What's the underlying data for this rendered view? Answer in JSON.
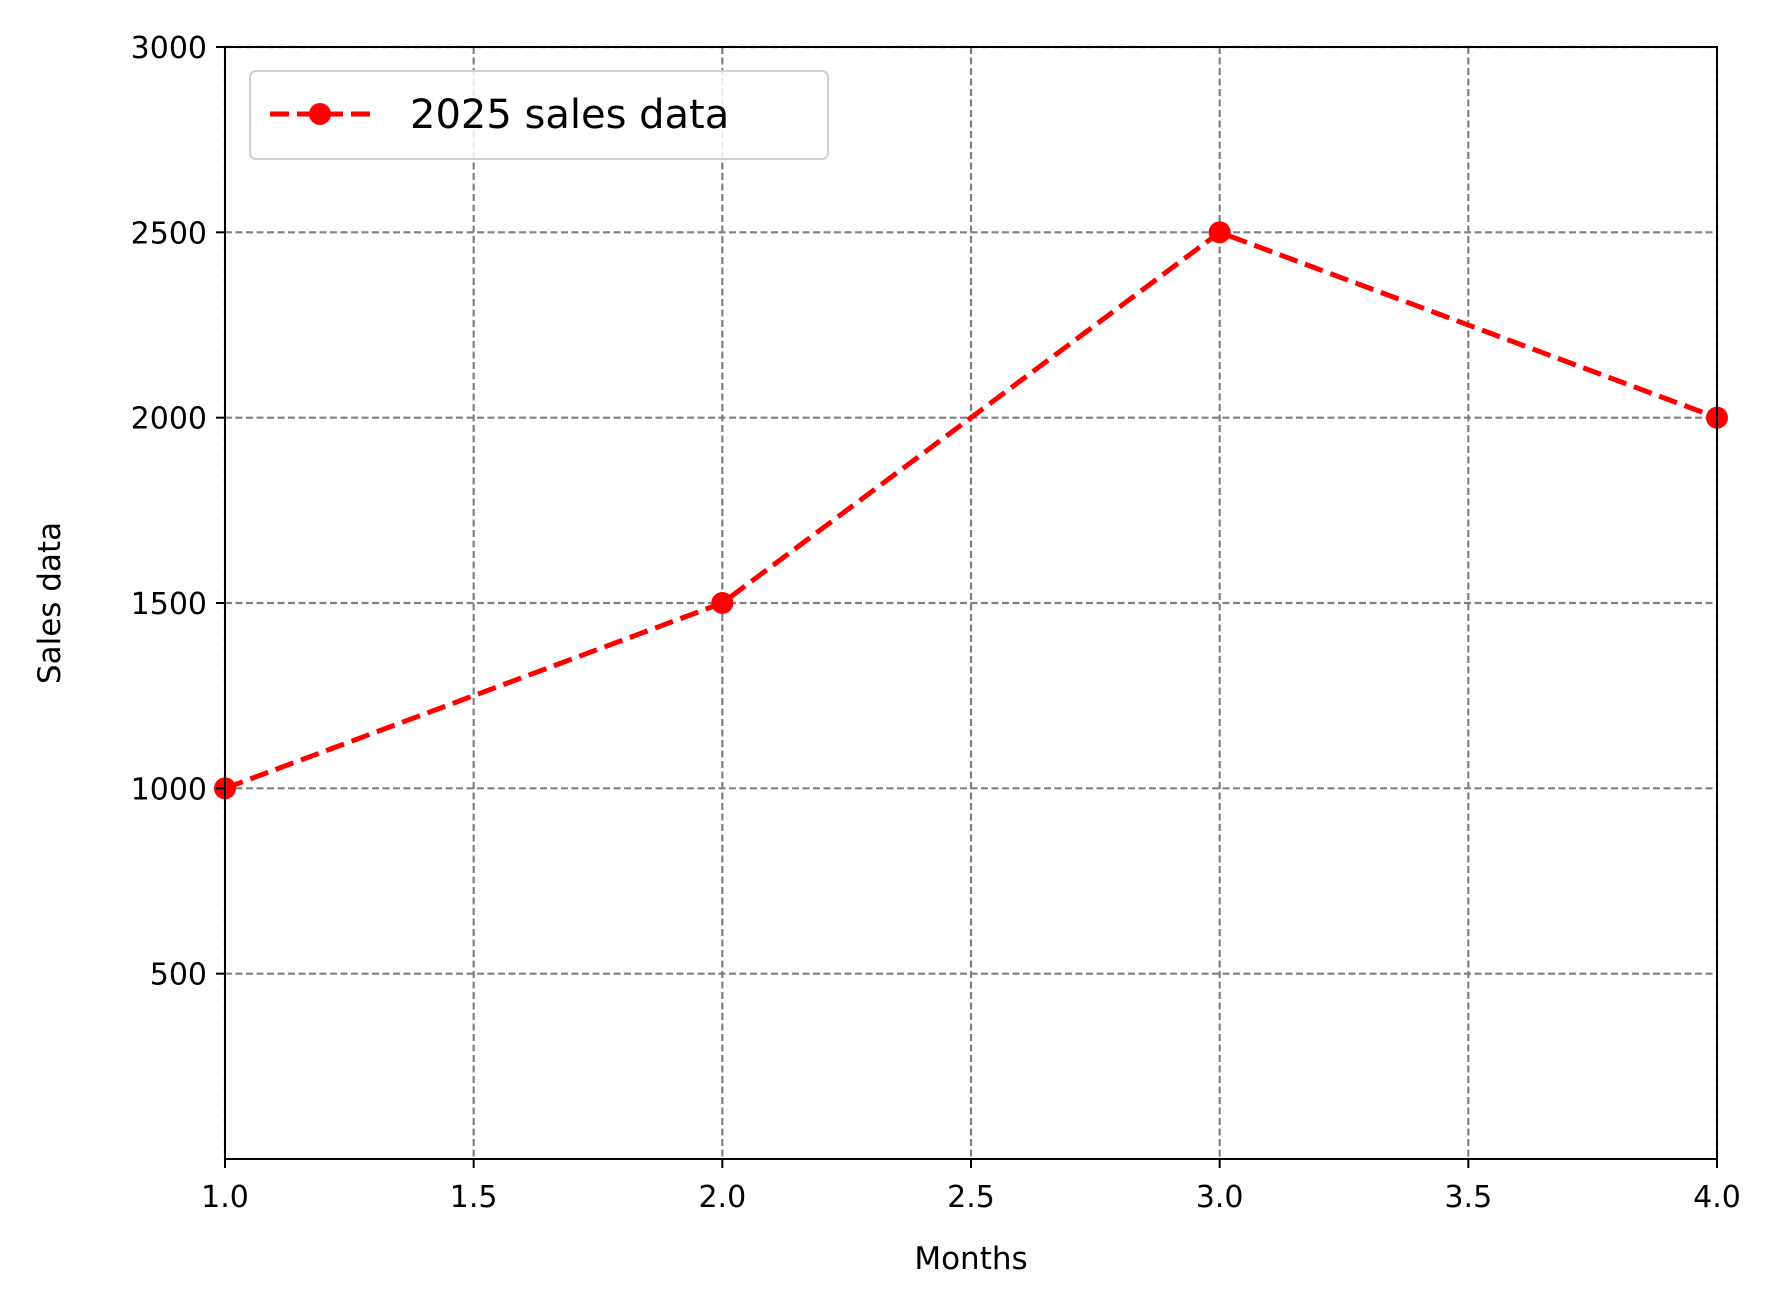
{
  "chart_data": {
    "type": "line",
    "title": "",
    "xlabel": "Months",
    "ylabel": "Sales data",
    "xlim": [
      1.0,
      4.0
    ],
    "ylim": [
      0,
      3000
    ],
    "x_ticks": [
      1.0,
      1.5,
      2.0,
      2.5,
      3.0,
      3.5,
      4.0
    ],
    "x_tick_labels": [
      "1.0",
      "1.5",
      "2.0",
      "2.5",
      "3.0",
      "3.5",
      "4.0"
    ],
    "y_ticks": [
      500,
      1000,
      1500,
      2000,
      2500,
      3000
    ],
    "y_tick_labels": [
      "500",
      "1000",
      "1500",
      "2000",
      "2500",
      "3000"
    ],
    "grid": true,
    "legend_position": "upper-left",
    "series": [
      {
        "name": "2025 sales data",
        "color": "#ff0000",
        "line_style": "dashed",
        "marker": "circle",
        "x": [
          1,
          2,
          3,
          4
        ],
        "y": [
          1000,
          1500,
          2500,
          2000
        ]
      }
    ]
  }
}
